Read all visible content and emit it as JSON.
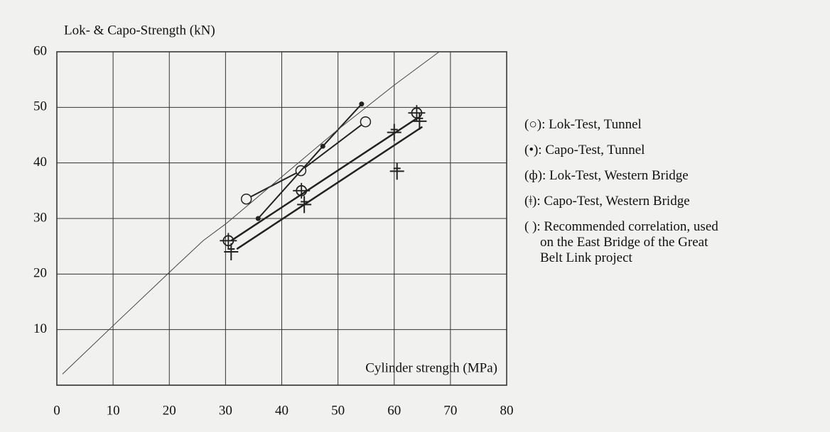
{
  "chart_data": {
    "type": "scatter",
    "y_label": "Lok- & Capo-Strength (kN)",
    "x_label": "Cylinder strength (MPa)",
    "xlim": [
      0,
      80
    ],
    "ylim": [
      0,
      60
    ],
    "xticks": [
      0,
      10,
      20,
      30,
      40,
      50,
      60,
      70,
      80
    ],
    "yticks": [
      10,
      20,
      30,
      40,
      50,
      60
    ],
    "grid": true,
    "legend": "right",
    "series": [
      {
        "name": "(○): Lok-Test, Tunnel",
        "marker": "circle",
        "connect": true,
        "color": "#222222",
        "x": [
          33.7,
          43.4,
          54.9
        ],
        "values": [
          33.5,
          38.6,
          47.4
        ]
      },
      {
        "name": "(•): Capo-Test, Tunnel",
        "marker": "dot",
        "connect": true,
        "color": "#222222",
        "x": [
          35.8,
          47.3,
          54.2
        ],
        "values": [
          30,
          43,
          50.6
        ]
      },
      {
        "name": "(ф): Lok-Test, Western Bridge",
        "marker": "circle-bar",
        "connect": false,
        "color": "#222222",
        "x": [
          30.5,
          43.5,
          64
        ],
        "values": [
          26,
          35,
          49
        ],
        "fit": {
          "x": [
            31,
            64
          ],
          "values": [
            26,
            48
          ]
        }
      },
      {
        "name": "(ǂ): Capo-Test, Western Bridge",
        "marker": "cross",
        "connect": false,
        "color": "#222222",
        "x": [
          31,
          44,
          60.5,
          60,
          64.5
        ],
        "values": [
          24,
          32.5,
          38.5,
          45.5,
          47.5
        ],
        "fit": {
          "x": [
            32,
            65
          ],
          "values": [
            24.5,
            46.5
          ]
        }
      },
      {
        "name": "(  ): Recommended correlation, used on the East Bridge of the Great Belt Link project",
        "marker": "none",
        "connect": true,
        "color": "#444444",
        "x": [
          1,
          10,
          20,
          26,
          30,
          40,
          50,
          60,
          68
        ],
        "values": [
          2,
          10.7,
          20.3,
          26,
          29,
          37.5,
          46,
          54,
          60
        ]
      }
    ]
  }
}
